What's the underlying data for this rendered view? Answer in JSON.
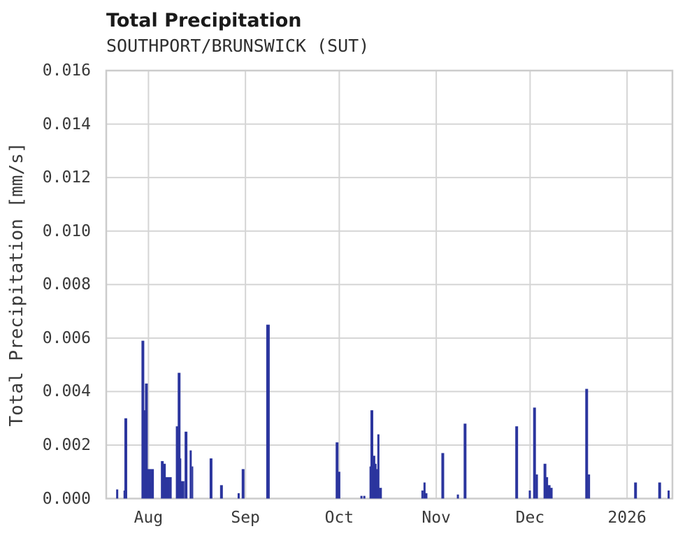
{
  "header": {
    "title": "Total Precipitation",
    "subtitle": "SOUTHPORT/BRUNSWICK (SUT)"
  },
  "chart_data": {
    "type": "bar",
    "title": "Total Precipitation",
    "subtitle": "SOUTHPORT/BRUNSWICK (SUT)",
    "xlabel": "",
    "ylabel": "Total Precipitation [mm/s]",
    "ylim": [
      0,
      0.016
    ],
    "grid": true,
    "legend": "none",
    "bar_color": "#2b359e",
    "grid_color": "#d5d5d5",
    "spine_color": "#cccccc",
    "y_ticks": [
      {
        "label": "0.000",
        "value": 0.0
      },
      {
        "label": "0.002",
        "value": 0.002
      },
      {
        "label": "0.004",
        "value": 0.004
      },
      {
        "label": "0.006",
        "value": 0.006
      },
      {
        "label": "0.008",
        "value": 0.008
      },
      {
        "label": "0.010",
        "value": 0.01
      },
      {
        "label": "0.012",
        "value": 0.012
      },
      {
        "label": "0.014",
        "value": 0.014
      },
      {
        "label": "0.016",
        "value": 0.016
      }
    ],
    "x_axis": {
      "start": "2025-07-18T12:00Z",
      "end": "2026-01-15T12:00Z"
    },
    "x_ticks": [
      {
        "label": "Aug",
        "date": "2025-08-01"
      },
      {
        "label": "Sep",
        "date": "2025-09-01"
      },
      {
        "label": "Oct",
        "date": "2025-10-01"
      },
      {
        "label": "Nov",
        "date": "2025-11-01"
      },
      {
        "label": "Dec",
        "date": "2025-12-01"
      },
      {
        "label": "2026",
        "date": "2026-01-01"
      }
    ],
    "points": [
      {
        "d": "2025-07-22T00:00Z",
        "v": 0.00034,
        "w": 3
      },
      {
        "d": "2025-07-24T06:00Z",
        "v": 0.0003,
        "w": 2
      },
      {
        "d": "2025-07-24T18:00Z",
        "v": 0.003,
        "w": 4
      },
      {
        "d": "2025-07-30T05:00Z",
        "v": 0.0059,
        "w": 4
      },
      {
        "d": "2025-07-30T16:00Z",
        "v": 0.0033,
        "w": 3
      },
      {
        "d": "2025-07-31T08:00Z",
        "v": 0.0043,
        "w": 4
      },
      {
        "d": "2025-08-01T00:00Z",
        "v": 0.0011,
        "w": 6
      },
      {
        "d": "2025-08-01T14:00Z",
        "v": 0.0006,
        "w": 3
      },
      {
        "d": "2025-08-02T04:00Z",
        "v": 0.0011,
        "w": 5
      },
      {
        "d": "2025-08-05T10:00Z",
        "v": 0.0014,
        "w": 4
      },
      {
        "d": "2025-08-06T02:00Z",
        "v": 0.0013,
        "w": 4
      },
      {
        "d": "2025-08-07T10:00Z",
        "v": 0.0008,
        "w": 9
      },
      {
        "d": "2025-08-10T02:00Z",
        "v": 0.0027,
        "w": 3
      },
      {
        "d": "2025-08-10T19:00Z",
        "v": 0.0047,
        "w": 4
      },
      {
        "d": "2025-08-11T06:00Z",
        "v": 0.0015,
        "w": 2
      },
      {
        "d": "2025-08-11T22:00Z",
        "v": 0.00065,
        "w": 5
      },
      {
        "d": "2025-08-13T00:00Z",
        "v": 0.0025,
        "w": 4
      },
      {
        "d": "2025-08-14T12:00Z",
        "v": 0.0018,
        "w": 3
      },
      {
        "d": "2025-08-15T02:00Z",
        "v": 0.0012,
        "w": 2
      },
      {
        "d": "2025-08-21T00:00Z",
        "v": 0.0015,
        "w": 4
      },
      {
        "d": "2025-08-24T08:00Z",
        "v": 0.0005,
        "w": 4
      },
      {
        "d": "2025-08-29T20:00Z",
        "v": 0.0002,
        "w": 3
      },
      {
        "d": "2025-08-31T06:00Z",
        "v": 0.0011,
        "w": 4
      },
      {
        "d": "2025-09-08T05:00Z",
        "v": 0.0065,
        "w": 5
      },
      {
        "d": "2025-09-30T07:00Z",
        "v": 0.0021,
        "w": 4
      },
      {
        "d": "2025-10-01T00:00Z",
        "v": 0.001,
        "w": 3
      },
      {
        "d": "2025-10-08T02:00Z",
        "v": 0.0001,
        "w": 3
      },
      {
        "d": "2025-10-09T00:00Z",
        "v": 0.0001,
        "w": 3
      },
      {
        "d": "2025-10-11T00:00Z",
        "v": 0.0012,
        "w": 3
      },
      {
        "d": "2025-10-11T10:00Z",
        "v": 0.0033,
        "w": 4
      },
      {
        "d": "2025-10-12T04:00Z",
        "v": 0.0016,
        "w": 3
      },
      {
        "d": "2025-10-12T14:00Z",
        "v": 0.0013,
        "w": 3
      },
      {
        "d": "2025-10-13T00:00Z",
        "v": 0.0011,
        "w": 3
      },
      {
        "d": "2025-10-13T12:00Z",
        "v": 0.0024,
        "w": 3
      },
      {
        "d": "2025-10-14T04:00Z",
        "v": 0.0004,
        "w": 4
      },
      {
        "d": "2025-10-27T14:00Z",
        "v": 0.0003,
        "w": 3
      },
      {
        "d": "2025-10-28T06:00Z",
        "v": 0.0006,
        "w": 3
      },
      {
        "d": "2025-10-28T20:00Z",
        "v": 0.0002,
        "w": 3
      },
      {
        "d": "2025-11-03T02:00Z",
        "v": 0.0017,
        "w": 4
      },
      {
        "d": "2025-11-07T22:00Z",
        "v": 0.00015,
        "w": 3
      },
      {
        "d": "2025-11-10T05:00Z",
        "v": 0.0028,
        "w": 4
      },
      {
        "d": "2025-11-26T17:00Z",
        "v": 0.0027,
        "w": 4
      },
      {
        "d": "2025-11-30T22:00Z",
        "v": 0.0003,
        "w": 3
      },
      {
        "d": "2025-12-02T10:00Z",
        "v": 0.0034,
        "w": 4
      },
      {
        "d": "2025-12-03T04:00Z",
        "v": 0.0009,
        "w": 3
      },
      {
        "d": "2025-12-05T18:00Z",
        "v": 0.0013,
        "w": 4
      },
      {
        "d": "2025-12-06T10:00Z",
        "v": 0.0008,
        "w": 3
      },
      {
        "d": "2025-12-07T02:00Z",
        "v": 0.0005,
        "w": 4
      },
      {
        "d": "2025-12-07T18:00Z",
        "v": 0.0004,
        "w": 4
      },
      {
        "d": "2025-12-19T02:00Z",
        "v": 0.0041,
        "w": 4
      },
      {
        "d": "2025-12-19T20:00Z",
        "v": 0.0009,
        "w": 3
      },
      {
        "d": "2026-01-03T17:00Z",
        "v": 0.0006,
        "w": 4
      },
      {
        "d": "2026-01-11T10:00Z",
        "v": 0.0006,
        "w": 4
      },
      {
        "d": "2026-01-14T07:00Z",
        "v": 0.0003,
        "w": 3
      }
    ]
  }
}
